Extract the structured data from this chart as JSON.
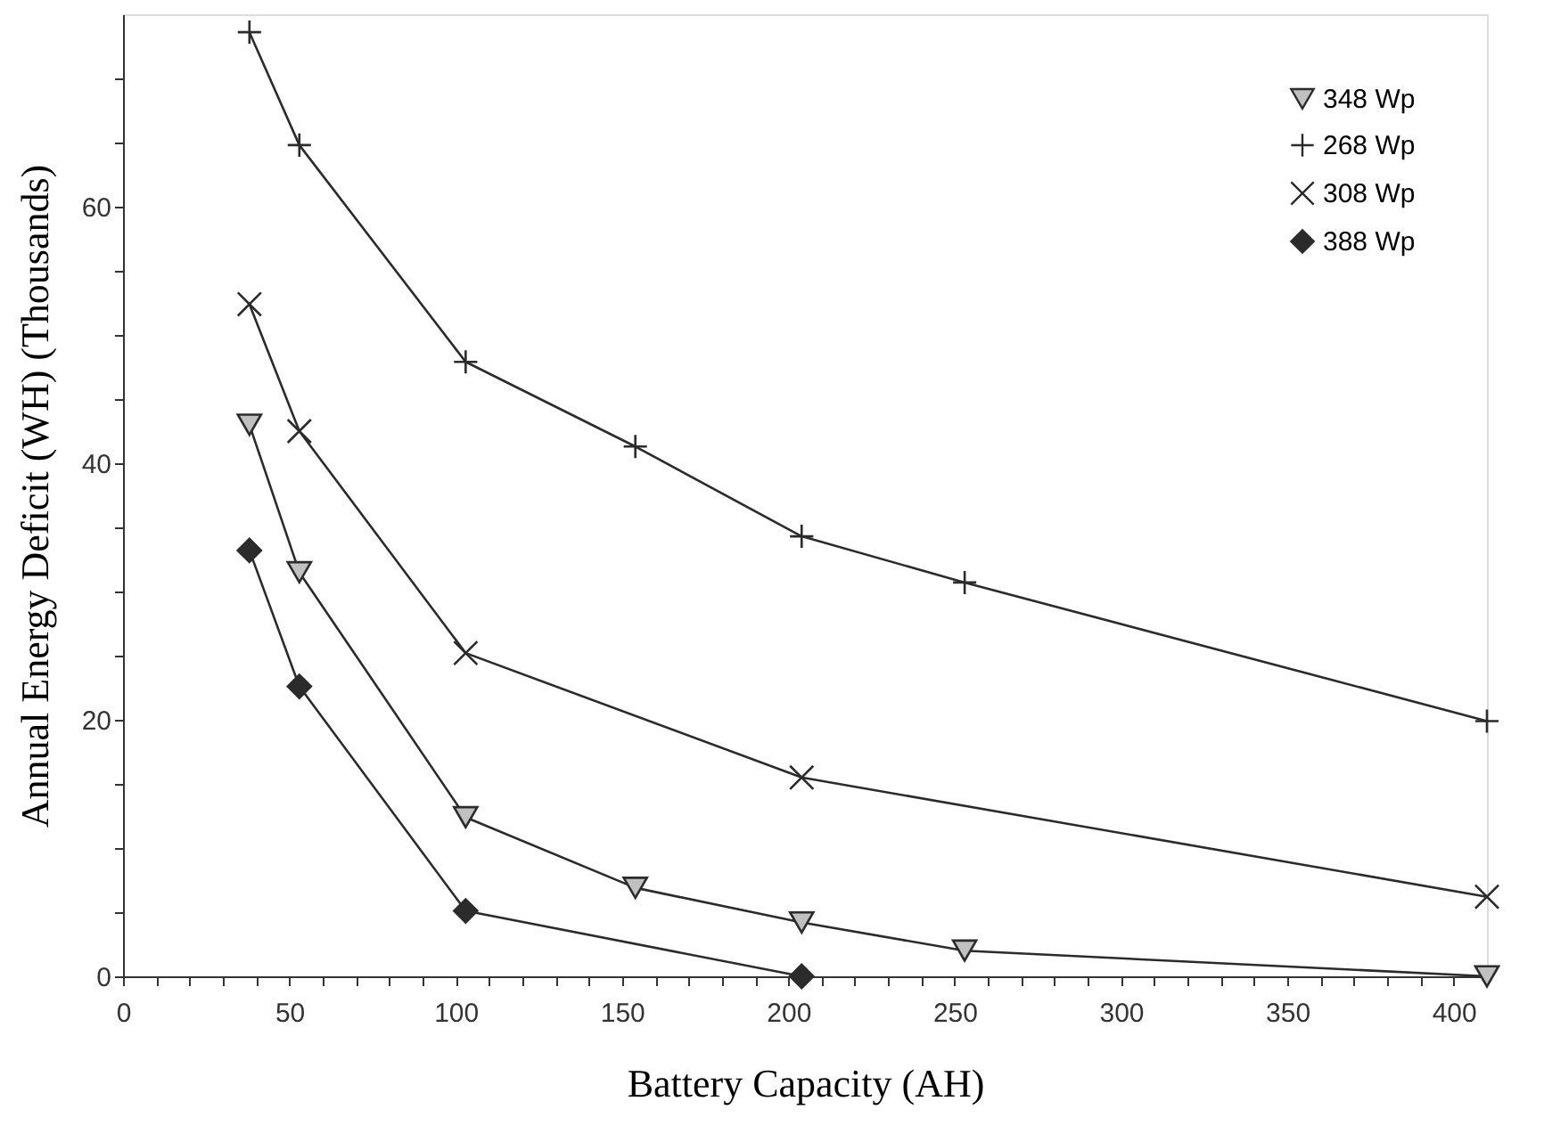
{
  "chart_data": {
    "type": "line",
    "xlabel": "Battery Capacity (AH)",
    "ylabel": "Annual Energy Deficit (WH) (Thousands)",
    "xlim": [
      0,
      410
    ],
    "ylim": [
      0,
      75
    ],
    "xticks": [
      0,
      {
        "value": 10,
        "label": null
      },
      {
        "value": 20,
        "label": null
      },
      {
        "value": 30,
        "label": null
      },
      {
        "value": 40,
        "label": null
      },
      50,
      {
        "value": 60,
        "label": null
      },
      {
        "value": 70,
        "label": null
      },
      {
        "value": 80,
        "label": null
      },
      {
        "value": 90,
        "label": null
      },
      100,
      {
        "value": 110,
        "label": null
      },
      {
        "value": 120,
        "label": null
      },
      {
        "value": 130,
        "label": null
      },
      {
        "value": 140,
        "label": null
      },
      150,
      {
        "value": 160,
        "label": null
      },
      {
        "value": 170,
        "label": null
      },
      {
        "value": 180,
        "label": null
      },
      {
        "value": 190,
        "label": null
      },
      200,
      {
        "value": 210,
        "label": null
      },
      {
        "value": 220,
        "label": null
      },
      {
        "value": 230,
        "label": null
      },
      {
        "value": 240,
        "label": null
      },
      250,
      {
        "value": 260,
        "label": null
      },
      {
        "value": 270,
        "label": null
      },
      {
        "value": 280,
        "label": null
      },
      {
        "value": 290,
        "label": null
      },
      300,
      {
        "value": 310,
        "label": null
      },
      {
        "value": 320,
        "label": null
      },
      {
        "value": 330,
        "label": null
      },
      {
        "value": 340,
        "label": null
      },
      350,
      {
        "value": 360,
        "label": null
      },
      {
        "value": 370,
        "label": null
      },
      {
        "value": 380,
        "label": null
      },
      {
        "value": 390,
        "label": null
      },
      400
    ],
    "yticks": [
      0,
      {
        "value": 5,
        "label": null
      },
      {
        "value": 10,
        "label": null
      },
      {
        "value": 15,
        "label": null
      },
      20,
      {
        "value": 25,
        "label": null
      },
      {
        "value": 30,
        "label": null
      },
      {
        "value": 35,
        "label": null
      },
      40,
      {
        "value": 45,
        "label": null
      },
      {
        "value": 50,
        "label": null
      },
      {
        "value": 55,
        "label": null
      },
      60,
      {
        "value": 65,
        "label": null
      },
      {
        "value": 70,
        "label": null
      }
    ],
    "grid": false,
    "legend": "top right",
    "line_style": "solid",
    "series": [
      {
        "name": "348 Wp",
        "color": "#c0c0c0",
        "marker": "triangle",
        "x": [
          38,
          53,
          103,
          154,
          204,
          253,
          410
        ],
        "values": [
          43,
          31.5,
          12.4,
          6.9,
          4.2,
          2.0,
          0
        ]
      },
      {
        "name": "268 Wp",
        "color": "#2b2b2b",
        "marker": "cross",
        "x": [
          38,
          53,
          103,
          154,
          204,
          253,
          410
        ],
        "values": [
          73.6,
          64.8,
          47.9,
          41.3,
          34.3,
          30.7,
          19.9
        ]
      },
      {
        "name": "308 Wp",
        "color": "#2b2b2b",
        "marker": "x",
        "x": [
          38,
          53,
          103,
          204,
          410
        ],
        "values": [
          52.4,
          42.5,
          25.2,
          15.5,
          6.2
        ]
      },
      {
        "name": "388 Wp",
        "color": "#2b2b2b",
        "marker": "diamond",
        "x": [
          38,
          53,
          103,
          204
        ],
        "values": [
          33.2,
          22.6,
          5.1,
          0
        ]
      }
    ]
  }
}
